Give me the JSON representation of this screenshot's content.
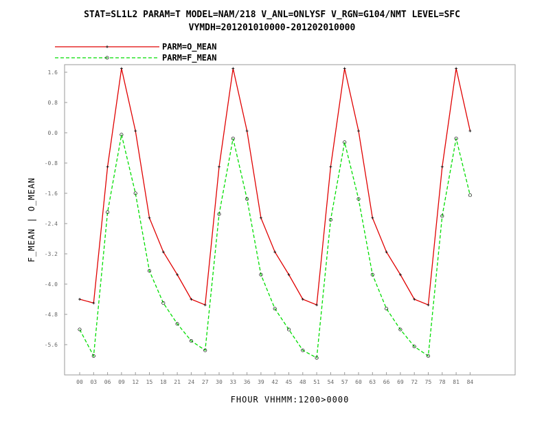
{
  "chart_data": {
    "type": "line",
    "title": "STAT=SL1L2 PARAM=T MODEL=NAM/218 V_ANL=ONLYSF V_RGN=G104/NMT LEVEL=SFC",
    "subtitle": "VYMDH=201201010000-201202010000",
    "xlabel": "FHOUR VHHMM:1200>0000",
    "ylabel": "F_MEAN | O_MEAN",
    "categories": [
      "00",
      "03",
      "06",
      "09",
      "12",
      "15",
      "18",
      "21",
      "24",
      "27",
      "30",
      "33",
      "36",
      "39",
      "42",
      "45",
      "48",
      "51",
      "54",
      "57",
      "60",
      "63",
      "66",
      "69",
      "72",
      "75",
      "78",
      "81",
      "84"
    ],
    "ylim": [
      -6.4,
      1.8
    ],
    "yticks": [
      "-5.6",
      "-4.8",
      "-4.0",
      "-3.2",
      "-2.4",
      "-1.6",
      "-0.8",
      "0.0",
      "0.8",
      "1.6"
    ],
    "legend": "top-left",
    "grid": false,
    "series": [
      {
        "name": "PARM=O_MEAN",
        "color": "#e00000",
        "marker": "plus",
        "values": [
          -4.4,
          -4.5,
          -0.9,
          1.7,
          0.05,
          -2.25,
          -3.15,
          -3.75,
          -4.4,
          -4.55,
          -0.9,
          1.7,
          0.05,
          -2.25,
          -3.15,
          -3.75,
          -4.4,
          -4.55,
          -0.9,
          1.7,
          0.05,
          -2.25,
          -3.15,
          -3.75,
          -4.4,
          -4.55,
          -0.9,
          1.7,
          0.05
        ]
      },
      {
        "name": "PARM=F_MEAN",
        "color": "#00dd00",
        "marker": "circle",
        "dash": true,
        "values": [
          -5.2,
          -5.9,
          -2.1,
          -0.05,
          -1.6,
          -3.65,
          -4.5,
          -5.05,
          -5.5,
          -5.75,
          -2.15,
          -0.15,
          -1.75,
          -3.75,
          -4.65,
          -5.2,
          -5.75,
          -5.95,
          -2.3,
          -0.25,
          -1.75,
          -3.75,
          -4.65,
          -5.2,
          -5.65,
          -5.9,
          -2.2,
          -0.15,
          -1.65
        ]
      }
    ]
  }
}
